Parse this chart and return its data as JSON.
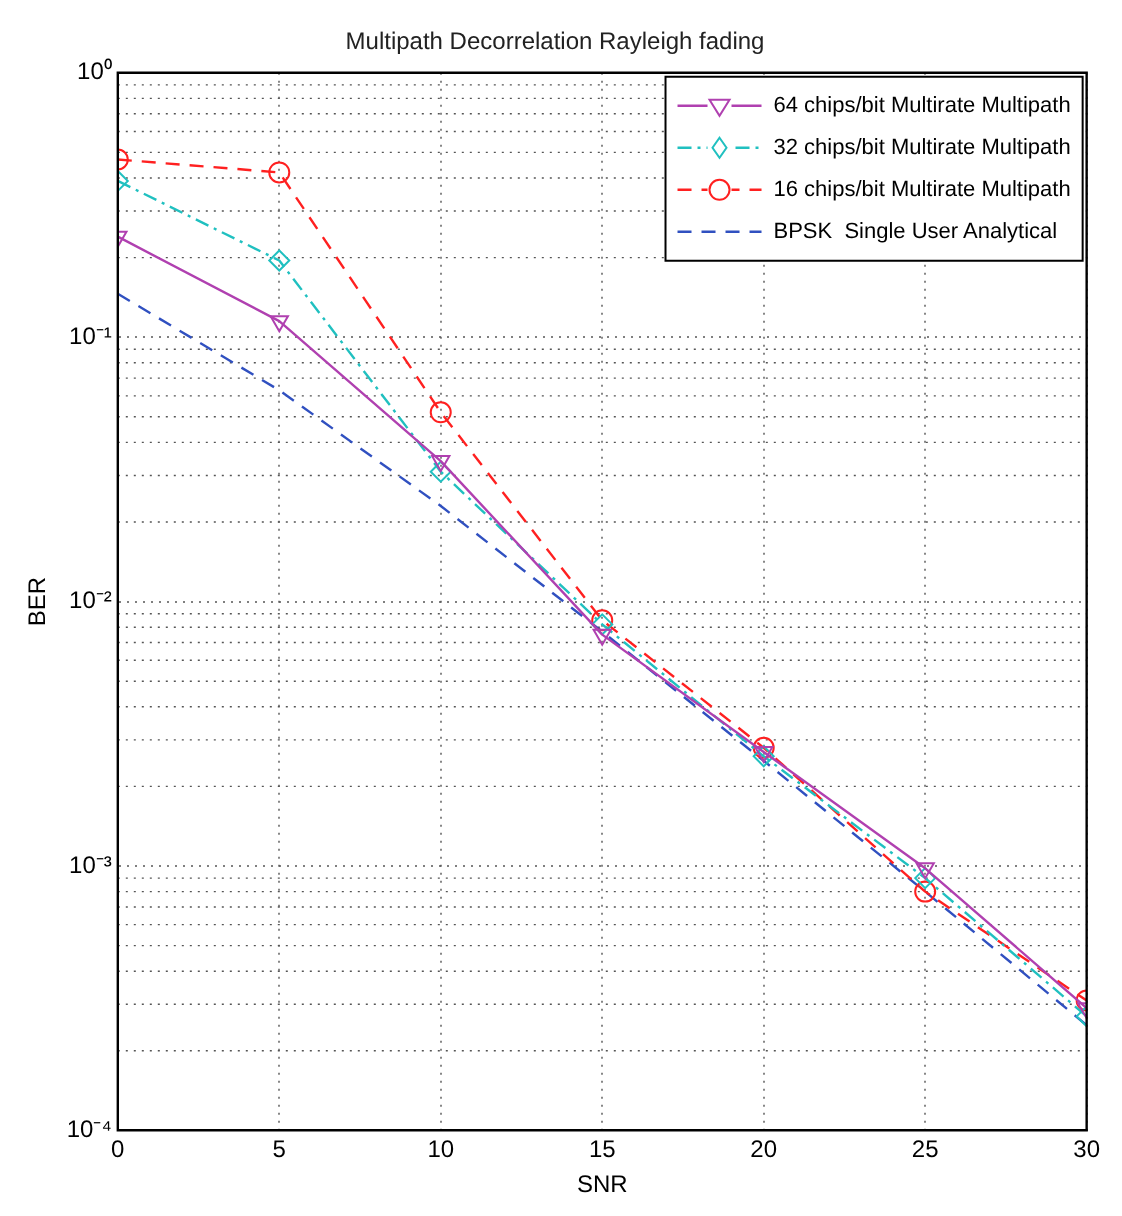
{
  "chart_data": {
    "type": "line",
    "title": "Multipath Decorrelation Rayleigh fading",
    "xlabel": "SNR",
    "ylabel": "BER",
    "x": [
      0,
      5,
      10,
      15,
      20,
      25,
      30
    ],
    "series": [
      {
        "name": "64 chips/bit Multirate Multipath",
        "color": "#b040b0",
        "marker": "triangle",
        "line_style": "solid",
        "values": [
          0.24,
          0.115,
          0.034,
          0.0075,
          0.0027,
          0.00098,
          0.00029
        ]
      },
      {
        "name": "32 chips/bit Multirate Multipath",
        "color": "#20c0c0",
        "marker": "diamond",
        "line_style": "dashdot",
        "values": [
          0.39,
          0.195,
          0.031,
          0.0082,
          0.0026,
          0.0009,
          0.00027
        ]
      },
      {
        "name": "16 chips/bit Multirate Multipath",
        "color": "#ff2020",
        "marker": "circle",
        "line_style": "dashed",
        "values": [
          0.47,
          0.42,
          0.052,
          0.0085,
          0.0028,
          0.0008,
          0.00031
        ]
      },
      {
        "name": "BPSK  Single User Analytical",
        "color": "#3050c0",
        "marker": "none",
        "line_style": "dashed",
        "values": [
          0.146,
          0.063,
          0.023,
          0.0077,
          0.0025,
          0.0008,
          0.00025
        ]
      }
    ],
    "xlim": [
      0,
      30
    ],
    "xticks": [
      0,
      5,
      10,
      15,
      20,
      25,
      30
    ],
    "ylim": [
      0.0001,
      1
    ],
    "yticks": [
      {
        "value": 0.0001,
        "label": "10⁻⁴"
      },
      {
        "value": 0.001,
        "label": "10⁻³"
      },
      {
        "value": 0.01,
        "label": "10⁻²"
      },
      {
        "value": 0.1,
        "label": "10⁻¹"
      },
      {
        "value": 1,
        "label": "10⁰"
      }
    ],
    "log": "y",
    "grid": true,
    "legend": "top right"
  }
}
